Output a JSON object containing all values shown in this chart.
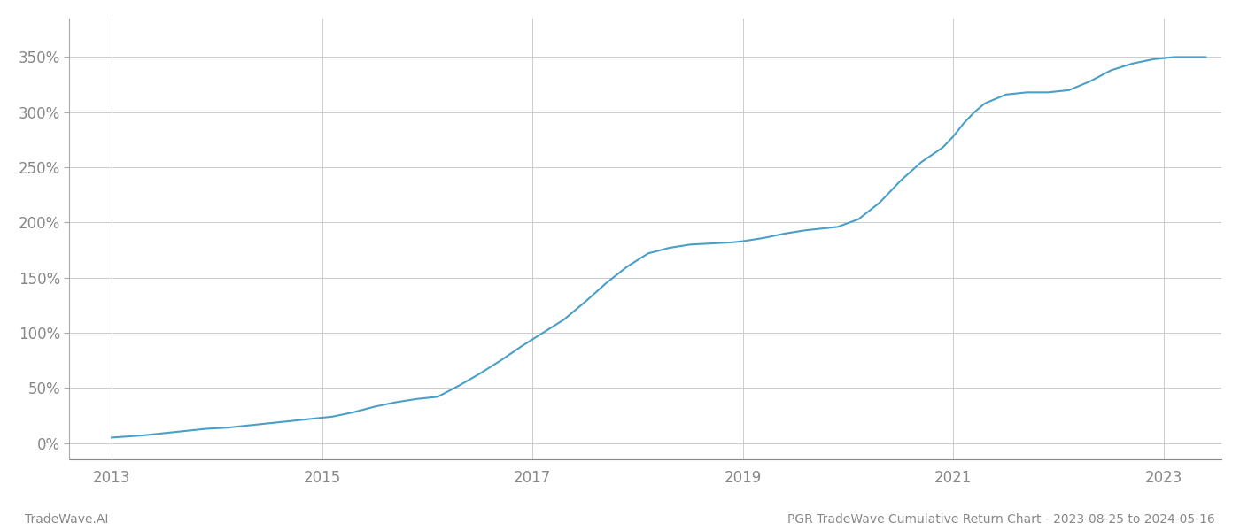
{
  "title": "PGR TradeWave Cumulative Return Chart - 2023-08-25 to 2024-05-16",
  "watermark": "TradeWave.AI",
  "line_color": "#4a9fc8",
  "background_color": "#ffffff",
  "grid_color": "#cccccc",
  "x_tick_labels": [
    "2013",
    "2015",
    "2017",
    "2019",
    "2021",
    "2023"
  ],
  "x_tick_positions": [
    2013,
    2015,
    2017,
    2019,
    2021,
    2023
  ],
  "xlim": [
    2012.6,
    2023.55
  ],
  "ylim_min": -0.15,
  "ylim_max": 3.85,
  "ytick_values": [
    0.0,
    0.5,
    1.0,
    1.5,
    2.0,
    2.5,
    3.0,
    3.5
  ],
  "ytick_labels": [
    "0%",
    "50%",
    "100%",
    "150%",
    "200%",
    "250%",
    "300%",
    "350%"
  ],
  "data_x": [
    2013.0,
    2013.15,
    2013.3,
    2013.5,
    2013.7,
    2013.9,
    2014.1,
    2014.3,
    2014.6,
    2014.9,
    2015.1,
    2015.3,
    2015.5,
    2015.7,
    2015.9,
    2016.1,
    2016.3,
    2016.5,
    2016.7,
    2016.9,
    2017.1,
    2017.3,
    2017.5,
    2017.7,
    2017.9,
    2018.1,
    2018.3,
    2018.5,
    2018.7,
    2018.9,
    2019.0,
    2019.2,
    2019.4,
    2019.6,
    2019.8,
    2019.9,
    2020.1,
    2020.3,
    2020.5,
    2020.7,
    2020.9,
    2021.0,
    2021.1,
    2021.2,
    2021.3,
    2021.5,
    2021.7,
    2021.9,
    2022.1,
    2022.3,
    2022.5,
    2022.7,
    2022.9,
    2023.1,
    2023.4
  ],
  "data_y": [
    0.05,
    0.06,
    0.07,
    0.09,
    0.11,
    0.13,
    0.14,
    0.16,
    0.19,
    0.22,
    0.24,
    0.28,
    0.33,
    0.37,
    0.4,
    0.42,
    0.52,
    0.63,
    0.75,
    0.88,
    1.0,
    1.12,
    1.28,
    1.45,
    1.6,
    1.72,
    1.77,
    1.8,
    1.81,
    1.82,
    1.83,
    1.86,
    1.9,
    1.93,
    1.95,
    1.96,
    2.03,
    2.18,
    2.38,
    2.55,
    2.68,
    2.78,
    2.9,
    3.0,
    3.08,
    3.16,
    3.18,
    3.18,
    3.2,
    3.28,
    3.38,
    3.44,
    3.48,
    3.5,
    3.5
  ],
  "line_width": 1.5,
  "tick_color": "#888888",
  "tick_fontsize": 12,
  "footer_fontsize": 10,
  "footer_color": "#888888"
}
